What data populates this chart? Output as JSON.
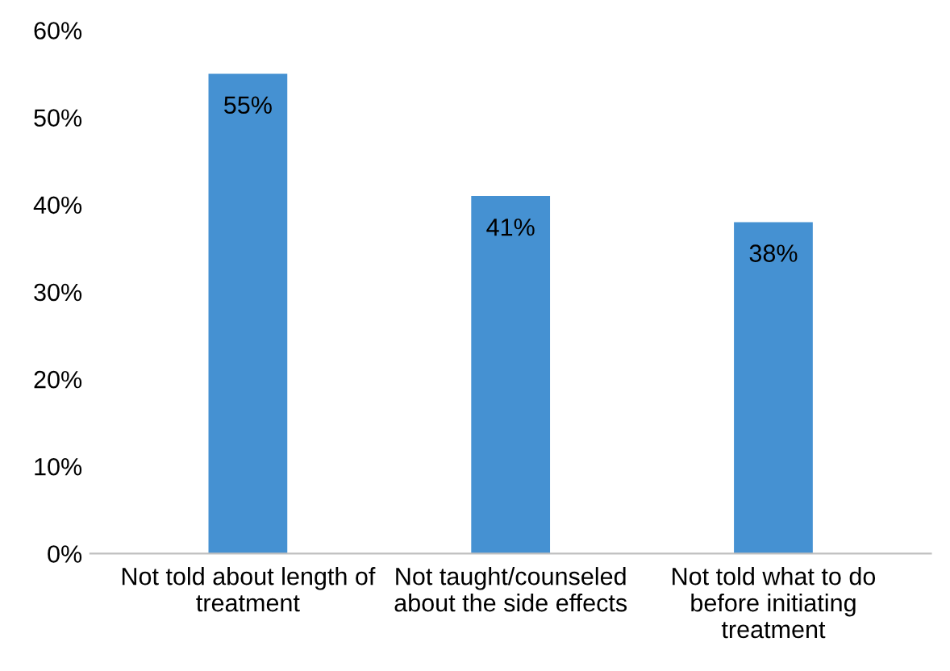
{
  "chart_data": {
    "type": "bar",
    "categories": [
      "Not told about length of treatment",
      "Not taught/counseled about the side effects",
      "Not told what to do before initiating treatment"
    ],
    "values": [
      55,
      41,
      38
    ],
    "color": "#4591d2",
    "value_labels": [
      "55%",
      "41%",
      "38%"
    ],
    "ylim": [
      0,
      60
    ],
    "yticks": [
      {
        "value": 0,
        "label": "0%"
      },
      {
        "value": 10,
        "label": "10%"
      },
      {
        "value": 20,
        "label": "20%"
      },
      {
        "value": 30,
        "label": "30%"
      },
      {
        "value": 40,
        "label": "40%"
      },
      {
        "value": 50,
        "label": "50%"
      },
      {
        "value": 60,
        "label": "60%"
      }
    ],
    "grid": false
  }
}
